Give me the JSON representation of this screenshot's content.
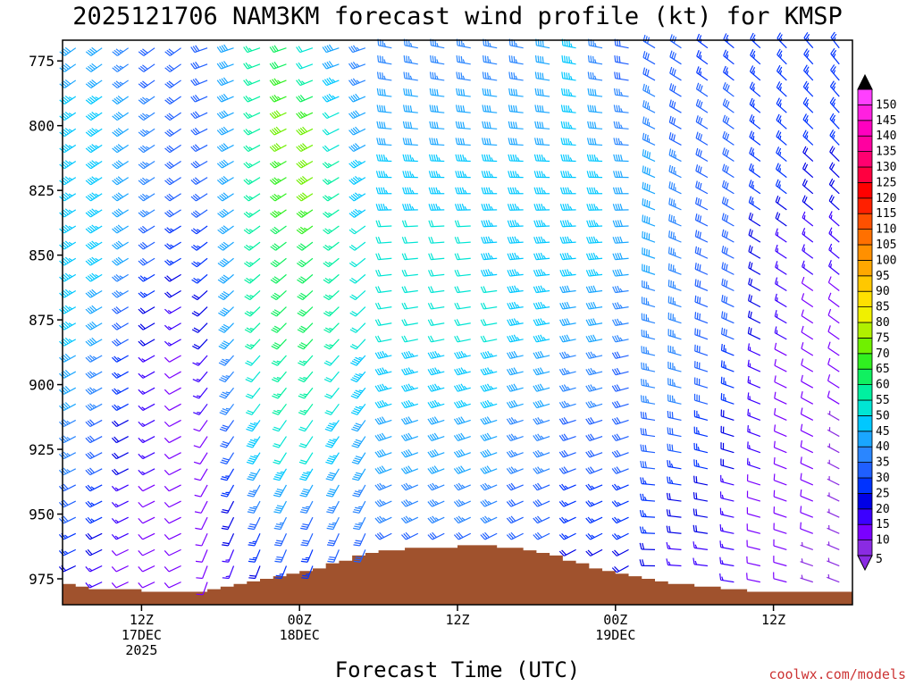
{
  "chart_data": {
    "type": "wind_profile",
    "title": "2025121706 NAM3KM forecast wind profile (kt) for KMSP",
    "xlabel": "Forecast Time (UTC)",
    "ylabel": "",
    "credit": "coolwx.com/models",
    "y_axis": {
      "units": "hPa",
      "range": [
        985,
        767
      ],
      "ticks": [
        "775",
        "800",
        "825",
        "850",
        "875",
        "900",
        "925",
        "950",
        "975"
      ]
    },
    "x_axis": {
      "units": "hours since 2025-12-17 06Z",
      "range": [
        0,
        60
      ],
      "ticks": [
        {
          "hour": 6,
          "lines": [
            "12Z",
            "17DEC",
            "2025"
          ]
        },
        {
          "hour": 18,
          "lines": [
            "00Z",
            "18DEC"
          ]
        },
        {
          "hour": 30,
          "lines": [
            "12Z"
          ]
        },
        {
          "hour": 42,
          "lines": [
            "00Z",
            "19DEC"
          ]
        },
        {
          "hour": 54,
          "lines": [
            "12Z"
          ]
        }
      ]
    },
    "colorbar": {
      "levels": [
        "5",
        "10",
        "15",
        "20",
        "25",
        "30",
        "35",
        "40",
        "45",
        "50",
        "55",
        "60",
        "65",
        "70",
        "75",
        "80",
        "85",
        "90",
        "95",
        "100",
        "105",
        "110",
        "115",
        "120",
        "125",
        "130",
        "135",
        "140",
        "145",
        "150"
      ],
      "colors": [
        "#8a2be2",
        "#7a00ff",
        "#3c00ff",
        "#0000e6",
        "#0033ff",
        "#1f5fff",
        "#2a86ff",
        "#1aa6ff",
        "#00c8ff",
        "#00e5d4",
        "#00f0a0",
        "#10f060",
        "#30f020",
        "#70f000",
        "#b0f000",
        "#f0f000",
        "#ffe000",
        "#ffc800",
        "#ffa800",
        "#ff9000",
        "#ff7000",
        "#ff5000",
        "#ff2000",
        "#ff0000",
        "#ff0040",
        "#ff0070",
        "#ff00a0",
        "#ff00c0",
        "#ff20e0",
        "#ff40ff"
      ]
    },
    "terrain_color": "#a0522d",
    "surface_pressure": {
      "hours": [
        0,
        1,
        2,
        3,
        4,
        5,
        6,
        7,
        8,
        9,
        10,
        11,
        12,
        13,
        14,
        15,
        16,
        17,
        18,
        19,
        20,
        21,
        22,
        23,
        24,
        25,
        26,
        27,
        28,
        29,
        30,
        31,
        32,
        33,
        34,
        35,
        36,
        37,
        38,
        39,
        40,
        41,
        42,
        43,
        44,
        45,
        46,
        47,
        48,
        49,
        50,
        51,
        52,
        53,
        54,
        55,
        56,
        57,
        58,
        59,
        60
      ],
      "hPa": [
        977,
        978,
        979,
        979,
        979,
        979,
        980,
        980,
        980,
        980,
        980,
        979,
        978,
        977,
        976,
        975,
        974,
        973,
        972,
        971,
        969,
        968,
        966,
        965,
        964,
        964,
        963,
        963,
        963,
        963,
        962,
        962,
        962,
        963,
        963,
        964,
        965,
        966,
        968,
        969,
        971,
        972,
        973,
        974,
        975,
        976,
        977,
        977,
        978,
        978,
        979,
        979,
        980,
        980,
        980,
        980,
        980,
        980,
        980,
        980,
        979
      ],
      "note": "approximate lower boundary of profile (terrain fill)"
    },
    "barbs": {
      "hour_step": 2,
      "hours": [
        0,
        2,
        4,
        6,
        8,
        10,
        12,
        14,
        16,
        18,
        20,
        22,
        24,
        26,
        28,
        30,
        32,
        34,
        36,
        38,
        40,
        42,
        44,
        46,
        48,
        50,
        52,
        54,
        56,
        58,
        60
      ],
      "levels_hPa": [
        775,
        787.5,
        800,
        812.5,
        825,
        837.5,
        850,
        862.5,
        875,
        887.5,
        900,
        912.5,
        925,
        937.5,
        950,
        962.5,
        975
      ],
      "speed_kt_at_level_by_hour": {
        "775": [
          40,
          40,
          35,
          30,
          30,
          30,
          40,
          55,
          60,
          50,
          40,
          35,
          35,
          35,
          35,
          35,
          35,
          35,
          40,
          45,
          35,
          30,
          30,
          30,
          25,
          25,
          25,
          25,
          25,
          25,
          25
        ],
        "800": [
          45,
          45,
          40,
          35,
          30,
          30,
          40,
          55,
          70,
          70,
          50,
          40,
          40,
          40,
          40,
          40,
          40,
          40,
          40,
          45,
          40,
          35,
          35,
          30,
          30,
          30,
          25,
          25,
          25,
          25,
          25
        ],
        "825": [
          45,
          45,
          40,
          35,
          30,
          30,
          40,
          55,
          65,
          70,
          55,
          45,
          45,
          45,
          45,
          45,
          45,
          45,
          45,
          45,
          45,
          40,
          40,
          35,
          30,
          30,
          25,
          25,
          20,
          20,
          20
        ],
        "850": [
          45,
          45,
          40,
          30,
          25,
          25,
          40,
          55,
          60,
          60,
          55,
          50,
          50,
          50,
          50,
          50,
          45,
          45,
          45,
          45,
          45,
          40,
          40,
          35,
          30,
          30,
          20,
          15,
          15,
          15,
          15
        ],
        "875": [
          45,
          40,
          30,
          20,
          15,
          20,
          40,
          55,
          60,
          60,
          55,
          50,
          50,
          50,
          50,
          50,
          50,
          45,
          45,
          40,
          40,
          35,
          35,
          35,
          30,
          30,
          20,
          15,
          10,
          10,
          10
        ],
        "900": [
          40,
          35,
          25,
          15,
          10,
          15,
          35,
          50,
          55,
          55,
          50,
          45,
          45,
          45,
          45,
          45,
          45,
          40,
          40,
          35,
          35,
          30,
          35,
          35,
          30,
          25,
          15,
          10,
          10,
          10,
          10
        ],
        "925": [
          35,
          30,
          20,
          15,
          10,
          10,
          30,
          45,
          50,
          50,
          45,
          40,
          40,
          40,
          40,
          40,
          40,
          35,
          35,
          30,
          30,
          30,
          30,
          30,
          25,
          20,
          15,
          10,
          10,
          5,
          5
        ],
        "950": [
          30,
          25,
          15,
          10,
          10,
          10,
          20,
          30,
          35,
          30,
          35,
          35,
          35,
          35,
          35,
          35,
          35,
          30,
          30,
          25,
          25,
          25,
          25,
          20,
          20,
          15,
          10,
          10,
          10,
          5,
          5
        ],
        "975": [
          20,
          15,
          10,
          10,
          10,
          10,
          15,
          20,
          25,
          25,
          25,
          25,
          25,
          25,
          25,
          25,
          25,
          25,
          25,
          20,
          20,
          20,
          20,
          15,
          15,
          15,
          10,
          10,
          5,
          5,
          5
        ]
      },
      "direction_deg_note": "winds mostly from W/SW early, S/SW near surface, shifting NW late"
    }
  }
}
